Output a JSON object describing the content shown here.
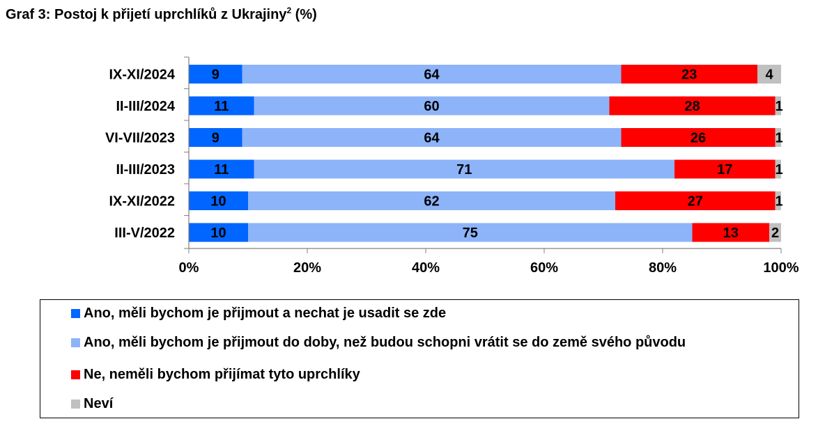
{
  "title": {
    "text": "Graf 3: Postoj k přijetí uprchlíků z Ukrajiny",
    "sup": "2",
    "suffix": " (%)"
  },
  "chart_data": {
    "type": "bar",
    "orientation": "horizontal",
    "stacked": true,
    "percent_stacked": true,
    "categories": [
      "IX-XI/2024",
      "II-III/2024",
      "VI-VII/2023",
      "II-III/2023",
      "IX-XI/2022",
      "III-V/2022"
    ],
    "series": [
      {
        "name": "Ano, měli bychom je přijmout a nechat je usadit se zde",
        "color": "#0066FF",
        "values": [
          9,
          11,
          9,
          11,
          10,
          10
        ]
      },
      {
        "name": "Ano, měli bychom je přijmout do doby, než budou schopni vrátit se do země svého původu",
        "color": "#8DB4F9",
        "values": [
          64,
          60,
          64,
          71,
          62,
          75
        ]
      },
      {
        "name": "Ne, neměli bychom přijímat tyto uprchlíky",
        "color": "#FF0000",
        "values": [
          23,
          28,
          26,
          17,
          27,
          13
        ]
      },
      {
        "name": "Neví",
        "color": "#C0C0C0",
        "values": [
          4,
          1,
          1,
          1,
          1,
          2
        ]
      }
    ],
    "xlim": [
      0,
      100
    ],
    "xticks": [
      "0%",
      "20%",
      "40%",
      "60%",
      "80%",
      "100%"
    ],
    "xlabel": "",
    "ylabel": "",
    "grid": false,
    "legend_position": "bottom"
  }
}
